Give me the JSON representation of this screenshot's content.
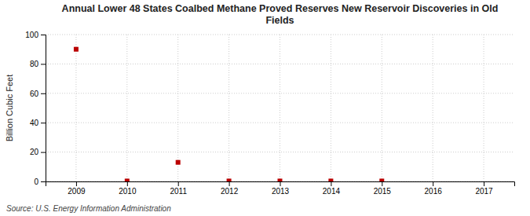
{
  "chart_data": {
    "type": "scatter",
    "title": "Annual Lower 48 States Coalbed Methane Proved Reserves New Reservoir Discoveries in Old\nFields",
    "y_label": "Billion Cubic Feet",
    "source": "Source: U.S. Energy Information Administration",
    "x": [
      2009,
      2010,
      2011,
      2012,
      2013,
      2014,
      2015,
      2016,
      2017
    ],
    "values": [
      90,
      0.3,
      13,
      0.3,
      0.3,
      0.3,
      0.3,
      null,
      null
    ],
    "xlim": [
      2008.4,
      2017.6
    ],
    "ylim": [
      0,
      100
    ],
    "xticks": [
      2009,
      2010,
      2011,
      2012,
      2013,
      2014,
      2015,
      2016,
      2017
    ],
    "yticks": [
      0,
      20,
      40,
      60,
      80,
      100
    ],
    "color": "#bb0000",
    "marker": "square",
    "grid": true
  }
}
